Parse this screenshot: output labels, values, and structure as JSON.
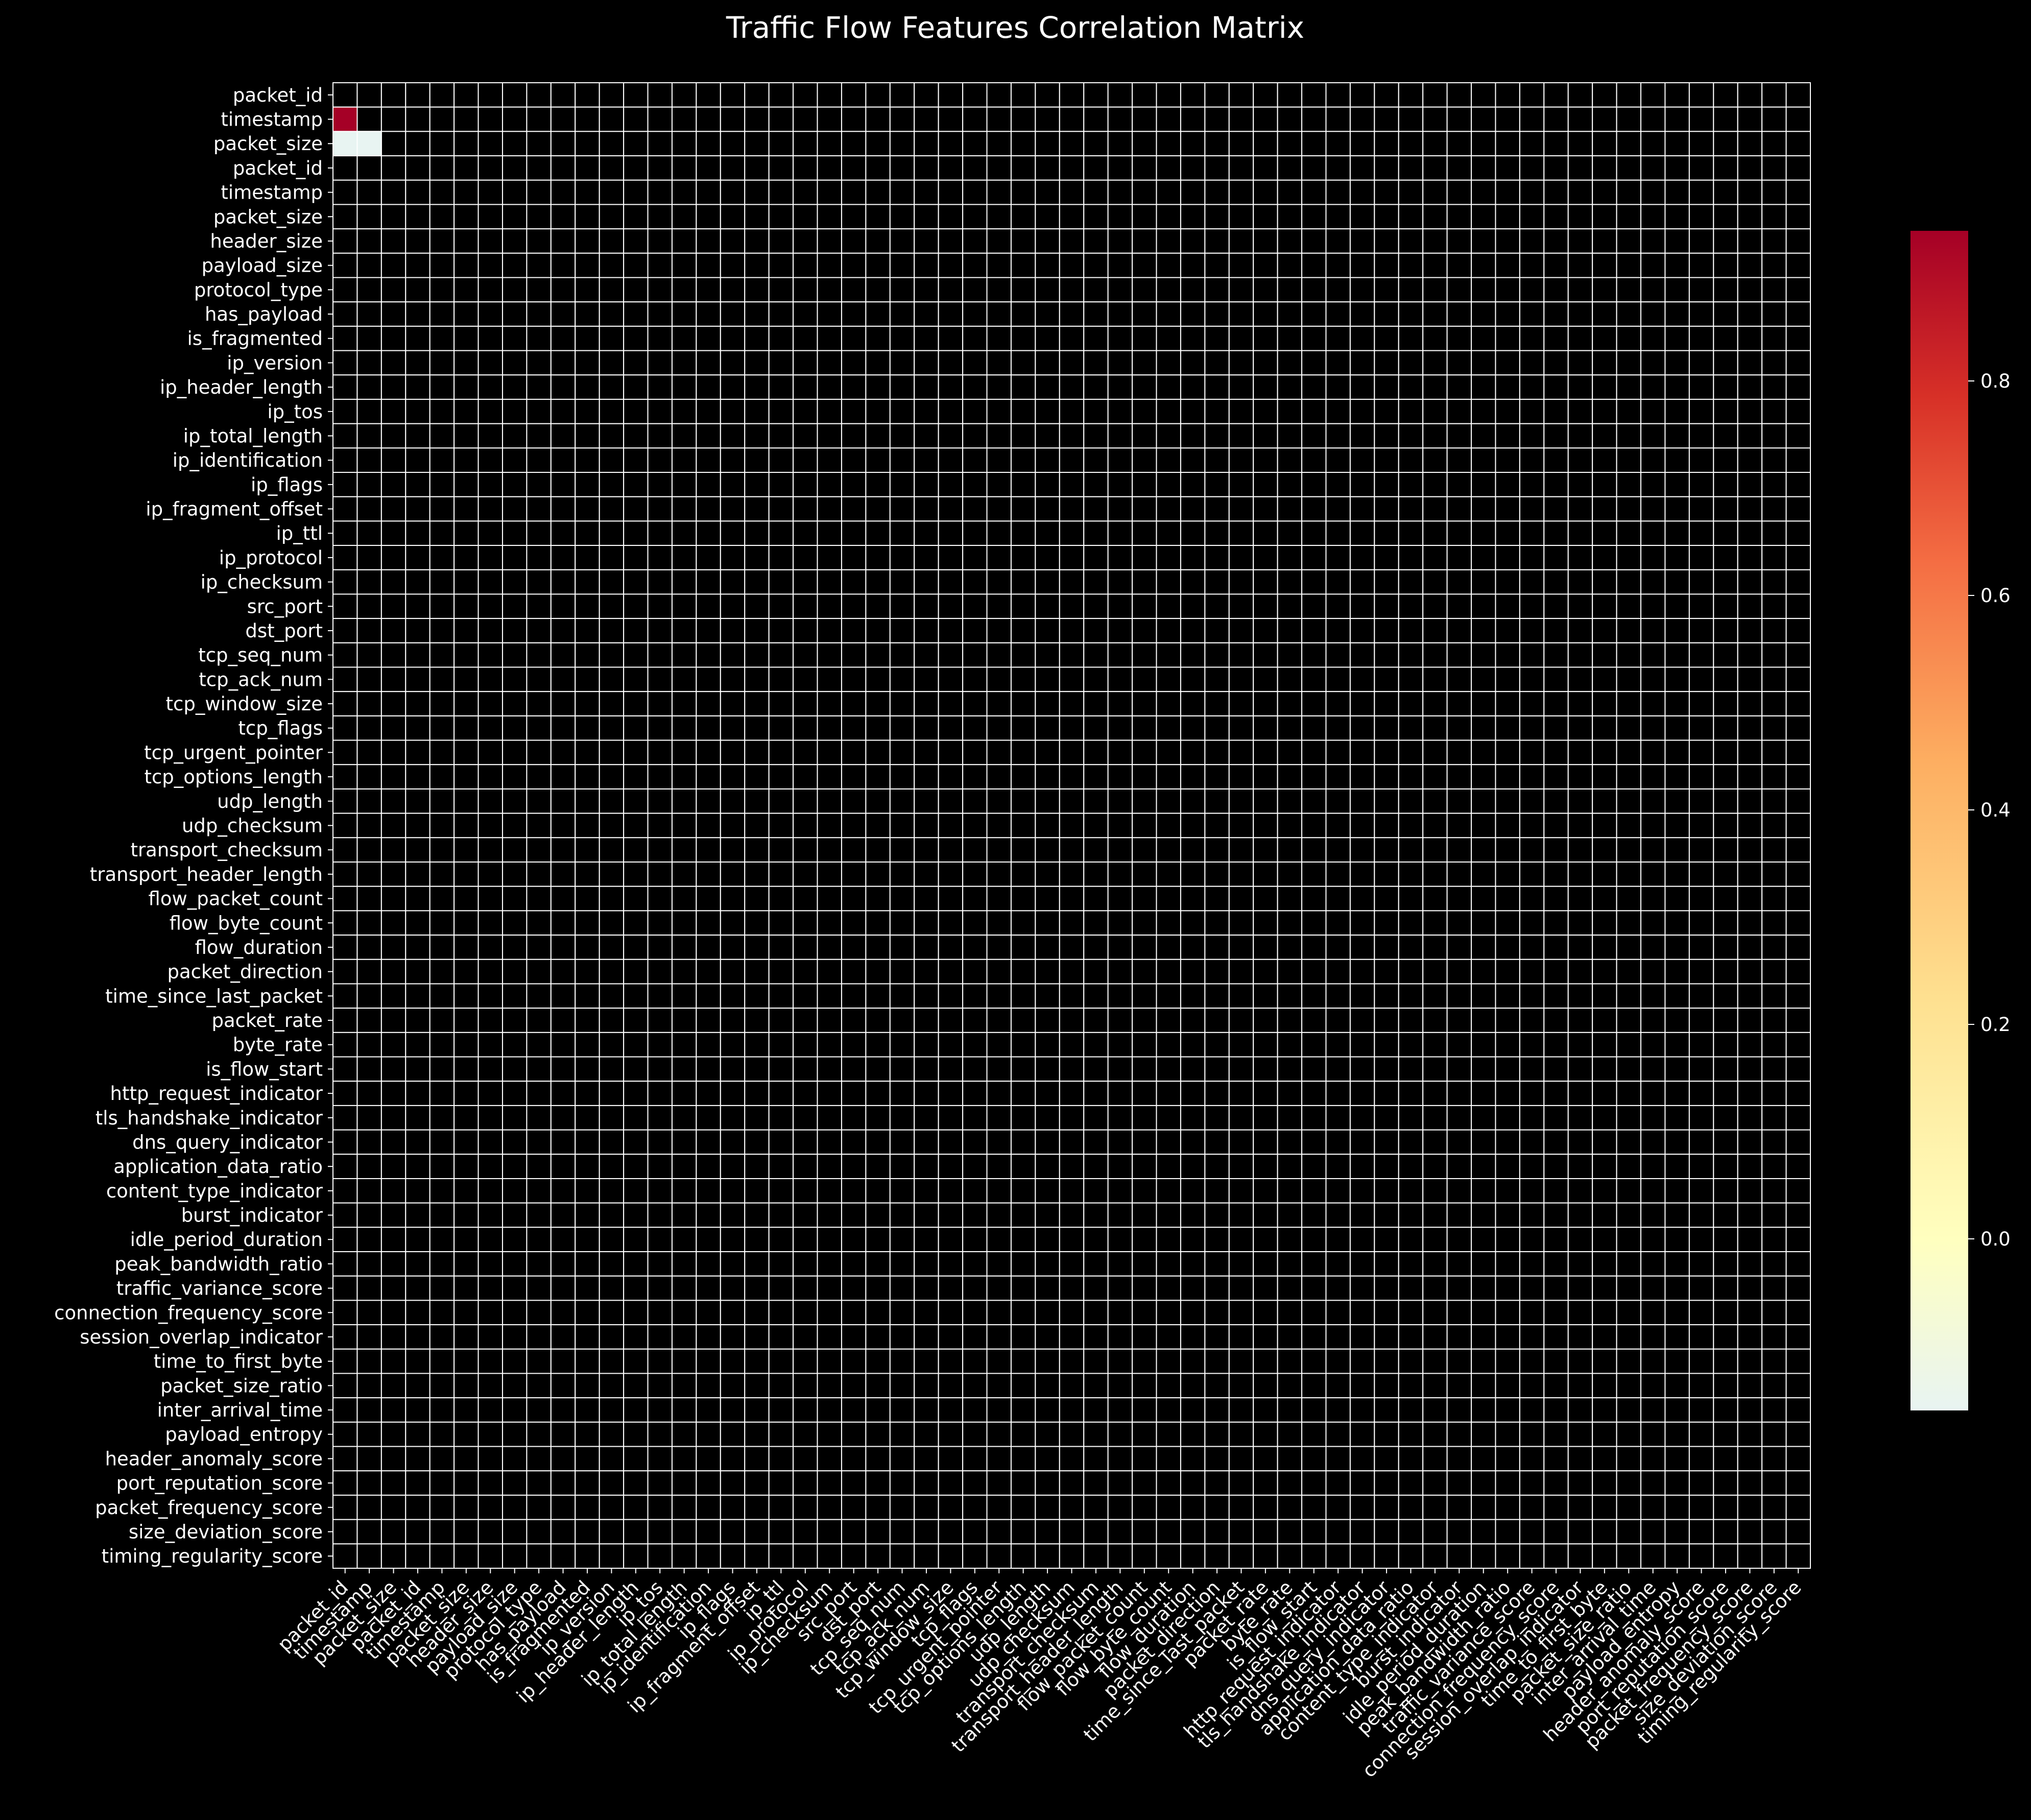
{
  "chart_data": {
    "type": "heatmap",
    "title": "Traffic Flow Features Correlation Matrix",
    "xlabel": "",
    "ylabel": "",
    "labels": [
      "packet_id",
      "timestamp",
      "packet_size",
      "packet_id",
      "timestamp",
      "packet_size",
      "header_size",
      "payload_size",
      "protocol_type",
      "has_payload",
      "is_fragmented",
      "ip_version",
      "ip_header_length",
      "ip_tos",
      "ip_total_length",
      "ip_identification",
      "ip_flags",
      "ip_fragment_offset",
      "ip_ttl",
      "ip_protocol",
      "ip_checksum",
      "src_port",
      "dst_port",
      "tcp_seq_num",
      "tcp_ack_num",
      "tcp_window_size",
      "tcp_flags",
      "tcp_urgent_pointer",
      "tcp_options_length",
      "udp_length",
      "udp_checksum",
      "transport_checksum",
      "transport_header_length",
      "flow_packet_count",
      "flow_byte_count",
      "flow_duration",
      "packet_direction",
      "time_since_last_packet",
      "packet_rate",
      "byte_rate",
      "is_flow_start",
      "http_request_indicator",
      "tls_handshake_indicator",
      "dns_query_indicator",
      "application_data_ratio",
      "content_type_indicator",
      "burst_indicator",
      "idle_period_duration",
      "peak_bandwidth_ratio",
      "traffic_variance_score",
      "connection_frequency_score",
      "session_overlap_indicator",
      "time_to_first_byte",
      "packet_size_ratio",
      "inter_arrival_time",
      "payload_entropy",
      "header_anomaly_score",
      "port_reputation_score",
      "packet_frequency_score",
      "size_deviation_score",
      "timing_regularity_score"
    ],
    "values": [
      {
        "row": 1,
        "col": 0,
        "value": 0.94
      },
      {
        "row": 2,
        "col": 0,
        "value": -0.16
      },
      {
        "row": 2,
        "col": 1,
        "value": -0.16
      }
    ],
    "mask": "upper-triangle-and-empty",
    "colormap": "RdYlBu_r-like (light cyan to yellow to dark red)",
    "colorbar": {
      "range": [
        -0.16,
        0.94
      ],
      "ticks": [
        0.0,
        0.2,
        0.4,
        0.6,
        0.8
      ],
      "tick_labels": [
        "0.0",
        "0.2",
        "0.4",
        "0.6",
        "0.8"
      ]
    },
    "grid": true
  },
  "colors": {
    "background": "#000000",
    "text": "#ffffff",
    "grid_line": "#ffffff",
    "high": "#a50026",
    "mid": "#ffffbf",
    "low": "#e8f4f2"
  }
}
